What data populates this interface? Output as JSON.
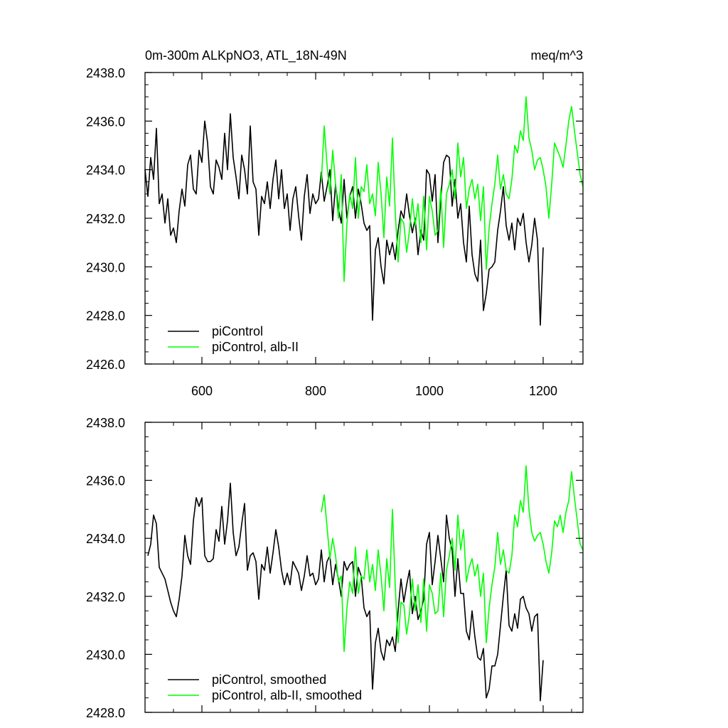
{
  "chart_data": [
    {
      "type": "line",
      "title": "0m-300m ALKpNO3, ATL_18N-49N",
      "units": "meq/m^3",
      "xlim": [
        500,
        1270
      ],
      "ylim": [
        2426.0,
        2438.0
      ],
      "xticks": [
        600,
        800,
        1000,
        1200
      ],
      "xtick_labels": [
        "600",
        "800",
        "1000",
        "1200"
      ],
      "yticks": [
        2426,
        2428,
        2430,
        2432,
        2434,
        2436,
        2438
      ],
      "ytick_labels": [
        "2426.0",
        "2428.0",
        "2430.0",
        "2432.0",
        "2434.0",
        "2436.0",
        "2438.0"
      ],
      "grid": false,
      "legend_position": "bottom-left",
      "series": [
        {
          "name": "piControl",
          "color": "#000000",
          "x": [
            500,
            505,
            510,
            515,
            520,
            525,
            530,
            535,
            540,
            545,
            550,
            555,
            560,
            565,
            570,
            575,
            580,
            585,
            590,
            595,
            600,
            605,
            610,
            615,
            620,
            625,
            630,
            635,
            640,
            645,
            650,
            655,
            660,
            665,
            670,
            675,
            680,
            685,
            690,
            695,
            700,
            705,
            710,
            715,
            720,
            725,
            730,
            735,
            740,
            745,
            750,
            755,
            760,
            765,
            770,
            775,
            780,
            785,
            790,
            795,
            800,
            805,
            810,
            815,
            820,
            825,
            830,
            835,
            840,
            845,
            850,
            855,
            860,
            865,
            870,
            875,
            880,
            885,
            890,
            895,
            900,
            905,
            910,
            915,
            920,
            925,
            930,
            935,
            940,
            945,
            950,
            955,
            960,
            965,
            970,
            975,
            980,
            985,
            990,
            995,
            1000,
            1005,
            1010,
            1015,
            1020,
            1025,
            1030,
            1035,
            1040,
            1045,
            1050,
            1055,
            1060,
            1065,
            1070,
            1075,
            1080,
            1085,
            1090,
            1095,
            1100,
            1105,
            1110,
            1115,
            1120,
            1125,
            1130,
            1135,
            1140,
            1145,
            1150,
            1155,
            1160,
            1165,
            1170,
            1175,
            1180,
            1185,
            1190,
            1195,
            1200
          ],
          "values": [
            2434.0,
            2432.9,
            2434.5,
            2433.6,
            2435.7,
            2432.6,
            2433.0,
            2431.8,
            2432.8,
            2431.3,
            2431.6,
            2431.0,
            2432.3,
            2433.2,
            2432.5,
            2434.2,
            2434.6,
            2433.2,
            2433.0,
            2434.8,
            2434.3,
            2436.0,
            2435.1,
            2433.3,
            2433.0,
            2434.4,
            2434.1,
            2433.6,
            2435.5,
            2434.0,
            2436.3,
            2434.5,
            2433.7,
            2432.8,
            2434.6,
            2434.0,
            2433.0,
            2435.8,
            2433.5,
            2433.2,
            2431.3,
            2432.9,
            2432.6,
            2433.5,
            2432.4,
            2433.6,
            2434.4,
            2432.8,
            2434.0,
            2432.4,
            2433.0,
            2431.5,
            2432.8,
            2433.3,
            2432.1,
            2431.1,
            2432.9,
            2433.8,
            2432.2,
            2433.0,
            2432.6,
            2432.8,
            2433.9,
            2432.7,
            2433.3,
            2434.0,
            2431.9,
            2433.4,
            2432.4,
            2431.8,
            2433.6,
            2432.0,
            2432.9,
            2433.3,
            2432.0,
            2433.2,
            2432.6,
            2431.8,
            2431.5,
            2431.7,
            2427.8,
            2430.7,
            2431.2,
            2430.0,
            2429.3,
            2431.1,
            2430.5,
            2431.0,
            2430.3,
            2431.5,
            2432.3,
            2432.0,
            2433.0,
            2432.1,
            2431.4,
            2432.0,
            2430.5,
            2431.5,
            2431.1,
            2434.0,
            2433.8,
            2432.7,
            2433.8,
            2431.0,
            2432.8,
            2434.3,
            2434.6,
            2434.5,
            2432.5,
            2433.6,
            2432.0,
            2432.6,
            2431.0,
            2430.2,
            2432.5,
            2430.5,
            2429.7,
            2429.4,
            2431.1,
            2428.2,
            2428.9,
            2429.9,
            2430.0,
            2430.2,
            2431.5,
            2432.3,
            2433.3,
            2431.7,
            2431.1,
            2431.8,
            2430.7,
            2432.0,
            2431.7,
            2432.2,
            2431.0,
            2430.2,
            2430.9,
            2432.0,
            2431.1,
            2427.6,
            2430.8
          ]
        },
        {
          "name": "piControl, alb-II",
          "color": "#00ff00",
          "x": [
            810,
            815,
            820,
            825,
            830,
            835,
            840,
            845,
            850,
            855,
            860,
            865,
            870,
            875,
            880,
            885,
            890,
            895,
            900,
            905,
            910,
            915,
            920,
            925,
            930,
            935,
            940,
            945,
            950,
            955,
            960,
            965,
            970,
            975,
            980,
            985,
            990,
            995,
            1000,
            1005,
            1010,
            1015,
            1020,
            1025,
            1030,
            1035,
            1040,
            1045,
            1050,
            1055,
            1060,
            1065,
            1070,
            1075,
            1080,
            1085,
            1090,
            1095,
            1100,
            1105,
            1110,
            1115,
            1120,
            1125,
            1130,
            1135,
            1140,
            1145,
            1150,
            1155,
            1160,
            1165,
            1170,
            1175,
            1180,
            1185,
            1190,
            1195,
            1200,
            1205,
            1210,
            1215,
            1220,
            1225,
            1230,
            1235,
            1240,
            1245,
            1250,
            1255,
            1260,
            1265,
            1270
          ],
          "values": [
            2433.5,
            2435.8,
            2434.2,
            2433.0,
            2434.8,
            2433.4,
            2432.0,
            2433.8,
            2429.4,
            2431.8,
            2433.0,
            2432.4,
            2434.5,
            2432.0,
            2433.3,
            2433.1,
            2434.2,
            2432.6,
            2433.0,
            2432.1,
            2434.3,
            2433.0,
            2431.2,
            2433.7,
            2432.5,
            2435.3,
            2432.2,
            2430.2,
            2432.0,
            2431.8,
            2430.6,
            2431.5,
            2432.8,
            2431.7,
            2432.6,
            2431.0,
            2432.9,
            2430.7,
            2432.9,
            2432.3,
            2431.3,
            2431.5,
            2433.2,
            2430.8,
            2433.0,
            2433.4,
            2434.0,
            2432.8,
            2435.1,
            2433.7,
            2434.5,
            2432.4,
            2433.2,
            2433.6,
            2432.8,
            2433.4,
            2431.9,
            2433.3,
            2429.9,
            2431.6,
            2432.6,
            2433.4,
            2434.6,
            2433.2,
            2433.8,
            2433.0,
            2432.8,
            2433.6,
            2435.0,
            2434.7,
            2435.6,
            2435.2,
            2437.0,
            2435.3,
            2434.8,
            2434.0,
            2434.4,
            2434.5,
            2434.0,
            2433.3,
            2432.0,
            2433.4,
            2435.1,
            2434.8,
            2434.5,
            2434.1,
            2435.0,
            2436.0,
            2436.6,
            2435.6,
            2434.7,
            2433.8,
            2433.3
          ]
        }
      ]
    },
    {
      "type": "line",
      "title": "",
      "units": "",
      "xlim": [
        500,
        1270
      ],
      "ylim": [
        2428.0,
        2438.0
      ],
      "xticks": [
        600,
        800,
        1000,
        1200
      ],
      "xtick_labels": [],
      "yticks": [
        2428,
        2430,
        2432,
        2434,
        2436,
        2438
      ],
      "ytick_labels": [
        "2428.0",
        "2430.0",
        "2432.0",
        "2434.0",
        "2436.0",
        "2438.0"
      ],
      "grid": false,
      "legend_position": "bottom-left",
      "series": [
        {
          "name": "piControl, smoothed",
          "color": "#000000",
          "x": [
            505,
            510,
            515,
            520,
            525,
            530,
            535,
            540,
            545,
            550,
            555,
            560,
            565,
            570,
            575,
            580,
            585,
            590,
            595,
            600,
            605,
            610,
            615,
            620,
            625,
            630,
            635,
            640,
            645,
            650,
            655,
            660,
            665,
            670,
            675,
            680,
            685,
            690,
            695,
            700,
            705,
            710,
            715,
            720,
            725,
            730,
            735,
            740,
            745,
            750,
            755,
            760,
            765,
            770,
            775,
            780,
            785,
            790,
            795,
            800,
            805,
            810,
            815,
            820,
            825,
            830,
            835,
            840,
            845,
            850,
            855,
            860,
            865,
            870,
            875,
            880,
            885,
            890,
            895,
            900,
            905,
            910,
            915,
            920,
            925,
            930,
            935,
            940,
            945,
            950,
            955,
            960,
            965,
            970,
            975,
            980,
            985,
            990,
            995,
            1000,
            1005,
            1010,
            1015,
            1020,
            1025,
            1030,
            1035,
            1040,
            1045,
            1050,
            1055,
            1060,
            1065,
            1070,
            1075,
            1080,
            1085,
            1090,
            1095,
            1100,
            1105,
            1110,
            1115,
            1120,
            1125,
            1130,
            1135,
            1140,
            1145,
            1150,
            1155,
            1160,
            1165,
            1170,
            1175,
            1180,
            1185,
            1190,
            1195,
            1200
          ],
          "values": [
            2433.4,
            2433.8,
            2434.8,
            2434.5,
            2433.0,
            2432.8,
            2432.6,
            2432.2,
            2431.8,
            2431.5,
            2431.3,
            2431.9,
            2432.7,
            2434.1,
            2433.4,
            2433.1,
            2434.6,
            2435.4,
            2435.1,
            2435.4,
            2433.4,
            2433.2,
            2433.2,
            2433.3,
            2434.3,
            2433.9,
            2435.1,
            2433.8,
            2434.6,
            2435.9,
            2434.2,
            2433.4,
            2433.7,
            2434.5,
            2435.2,
            2432.9,
            2433.4,
            2433.5,
            2433.2,
            2431.9,
            2433.1,
            2432.9,
            2433.7,
            2432.8,
            2433.5,
            2434.3,
            2433.7,
            2432.9,
            2432.4,
            2432.8,
            2432.4,
            2433.2,
            2433.0,
            2432.8,
            2432.2,
            2432.7,
            2433.4,
            2432.7,
            2432.8,
            2432.4,
            2432.6,
            2433.6,
            2432.5,
            2433.2,
            2433.4,
            2432.4,
            2433.1,
            2432.6,
            2432.0,
            2433.2,
            2432.9,
            2433.1,
            2433.2,
            2432.0,
            2433.0,
            2432.7,
            2431.6,
            2431.3,
            2431.5,
            2428.8,
            2430.4,
            2430.9,
            2430.1,
            2429.8,
            2430.5,
            2430.3,
            2430.6,
            2430.1,
            2431.5,
            2432.6,
            2431.8,
            2432.4,
            2432.9,
            2431.4,
            2432.0,
            2431.2,
            2431.5,
            2431.9,
            2433.8,
            2434.2,
            2432.4,
            2433.2,
            2434.1,
            2433.3,
            2432.5,
            2434.8,
            2434.0,
            2433.6,
            2432.0,
            2433.3,
            2432.1,
            2432.1,
            2430.8,
            2430.5,
            2431.5,
            2430.6,
            2429.9,
            2429.8,
            2430.2,
            2428.5,
            2428.8,
            2429.6,
            2429.6,
            2430.0,
            2431.0,
            2432.0,
            2432.9,
            2431.0,
            2430.8,
            2431.4,
            2430.9,
            2431.9,
            2432.0,
            2431.6,
            2431.4,
            2430.8,
            2431.3,
            2431.4,
            2428.4,
            2429.8
          ]
        },
        {
          "name": "piControl, alb-II, smoothed",
          "color": "#00ff00",
          "x": [
            810,
            815,
            820,
            825,
            830,
            835,
            840,
            845,
            850,
            855,
            860,
            865,
            870,
            875,
            880,
            885,
            890,
            895,
            900,
            905,
            910,
            915,
            920,
            925,
            930,
            935,
            940,
            945,
            950,
            955,
            960,
            965,
            970,
            975,
            980,
            985,
            990,
            995,
            1000,
            1005,
            1010,
            1015,
            1020,
            1025,
            1030,
            1035,
            1040,
            1045,
            1050,
            1055,
            1060,
            1065,
            1070,
            1075,
            1080,
            1085,
            1090,
            1095,
            1100,
            1105,
            1110,
            1115,
            1120,
            1125,
            1130,
            1135,
            1140,
            1145,
            1150,
            1155,
            1160,
            1165,
            1170,
            1175,
            1180,
            1185,
            1190,
            1195,
            1200,
            1205,
            1210,
            1215,
            1220,
            1225,
            1230,
            1235,
            1240,
            1245,
            1250,
            1255,
            1260,
            1265,
            1270
          ],
          "values": [
            2434.9,
            2435.5,
            2434.4,
            2433.3,
            2434.0,
            2433.4,
            2432.5,
            2432.7,
            2430.1,
            2431.6,
            2432.5,
            2432.1,
            2433.7,
            2432.1,
            2432.7,
            2432.6,
            2433.6,
            2432.5,
            2433.1,
            2432.2,
            2433.6,
            2432.7,
            2431.5,
            2433.3,
            2432.3,
            2435.0,
            2432.3,
            2430.4,
            2431.8,
            2431.7,
            2430.7,
            2431.4,
            2432.6,
            2431.5,
            2432.4,
            2431.1,
            2432.6,
            2430.8,
            2432.4,
            2432.1,
            2431.4,
            2431.5,
            2432.8,
            2431.3,
            2432.9,
            2433.4,
            2434.0,
            2432.9,
            2434.8,
            2433.6,
            2434.3,
            2432.5,
            2433.0,
            2433.3,
            2432.7,
            2433.1,
            2432.0,
            2432.8,
            2430.4,
            2431.6,
            2432.4,
            2433.0,
            2434.2,
            2433.1,
            2433.6,
            2432.9,
            2432.8,
            2433.4,
            2434.8,
            2434.4,
            2435.3,
            2434.9,
            2436.5,
            2435.0,
            2434.2,
            2433.9,
            2434.1,
            2434.2,
            2433.8,
            2433.2,
            2432.8,
            2433.5,
            2434.6,
            2434.4,
            2434.8,
            2434.2,
            2434.9,
            2435.3,
            2436.3,
            2435.4,
            2434.6,
            2433.8,
            2433.6
          ]
        }
      ]
    }
  ]
}
